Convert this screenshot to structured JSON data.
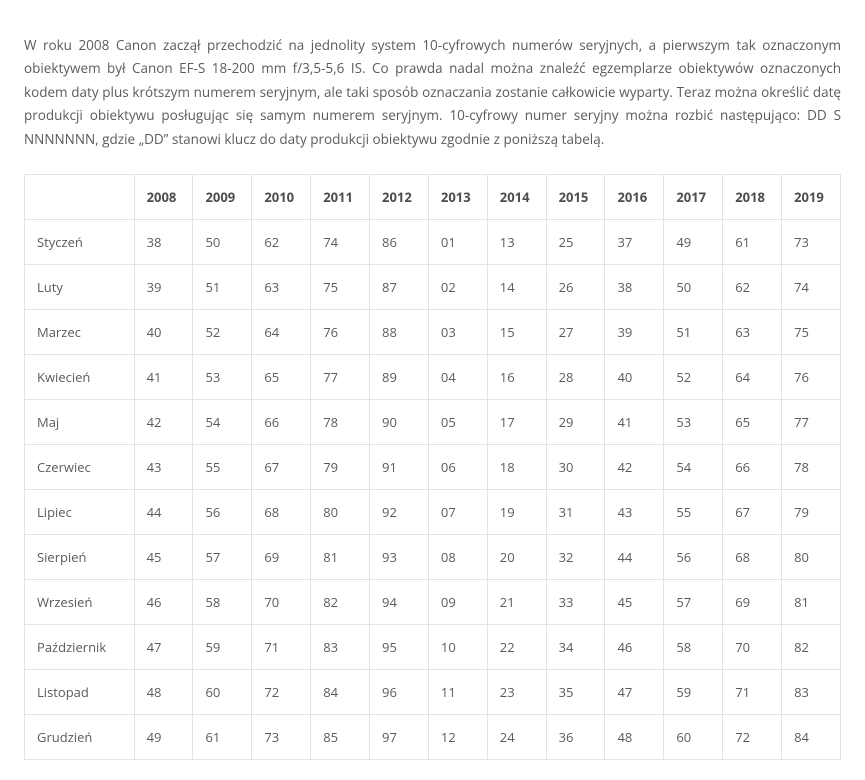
{
  "intro_text": "W roku 2008 Canon zaczął przechodzić na jednolity system 10-cyfrowych numerów seryjnych, a pierwszym tak oznaczonym obiektywem był Canon EF-S 18-200 mm f/3,5-5,6 IS. Co prawda nadal można znaleźć egzemplarze obiektywów oznaczonych kodem daty plus krótszym numerem seryjnym, ale taki sposób oznaczania zostanie całkowicie wyparty. Teraz można określić datę produkcji obiektywu posługując się samym numerem seryjnym. 10-cyfrowy numer seryjny można rozbić następująco: DD S NNNNNNN, gdzie „DD” stanowi klucz do daty produkcji obiektywu zgodnie z poniższą tabelą.",
  "table": {
    "type": "table",
    "background_color": "#ffffff",
    "border_color": "#e3e3e3",
    "text_color": "#5b5b5b",
    "header_text_color": "#4d4d4d",
    "fontsize": 13,
    "header_fontweight": 700,
    "years": [
      "2008",
      "2009",
      "2010",
      "2011",
      "2012",
      "2013",
      "2014",
      "2015",
      "2016",
      "2017",
      "2018",
      "2019"
    ],
    "months": [
      "Styczeń",
      "Luty",
      "Marzec",
      "Kwiecień",
      "Maj",
      "Czerwiec",
      "Lipiec",
      "Sierpień",
      "Wrzesień",
      "Październik",
      "Listopad",
      "Grudzień"
    ],
    "rows": [
      [
        "38",
        "50",
        "62",
        "74",
        "86",
        "01",
        "13",
        "25",
        "37",
        "49",
        "61",
        "73"
      ],
      [
        "39",
        "51",
        "63",
        "75",
        "87",
        "02",
        "14",
        "26",
        "38",
        "50",
        "62",
        "74"
      ],
      [
        "40",
        "52",
        "64",
        "76",
        "88",
        "03",
        "15",
        "27",
        "39",
        "51",
        "63",
        "75"
      ],
      [
        "41",
        "53",
        "65",
        "77",
        "89",
        "04",
        "16",
        "28",
        "40",
        "52",
        "64",
        "76"
      ],
      [
        "42",
        "54",
        "66",
        "78",
        "90",
        "05",
        "17",
        "29",
        "41",
        "53",
        "65",
        "77"
      ],
      [
        "43",
        "55",
        "67",
        "79",
        "91",
        "06",
        "18",
        "30",
        "42",
        "54",
        "66",
        "78"
      ],
      [
        "44",
        "56",
        "68",
        "80",
        "92",
        "07",
        "19",
        "31",
        "43",
        "55",
        "67",
        "79"
      ],
      [
        "45",
        "57",
        "69",
        "81",
        "93",
        "08",
        "20",
        "32",
        "44",
        "56",
        "68",
        "80"
      ],
      [
        "46",
        "58",
        "70",
        "82",
        "94",
        "09",
        "21",
        "33",
        "45",
        "57",
        "69",
        "81"
      ],
      [
        "47",
        "59",
        "71",
        "83",
        "95",
        "10",
        "22",
        "34",
        "46",
        "58",
        "70",
        "82"
      ],
      [
        "48",
        "60",
        "72",
        "84",
        "96",
        "11",
        "23",
        "35",
        "47",
        "59",
        "71",
        "83"
      ],
      [
        "49",
        "61",
        "73",
        "85",
        "97",
        "12",
        "24",
        "36",
        "48",
        "60",
        "72",
        "84"
      ]
    ]
  }
}
